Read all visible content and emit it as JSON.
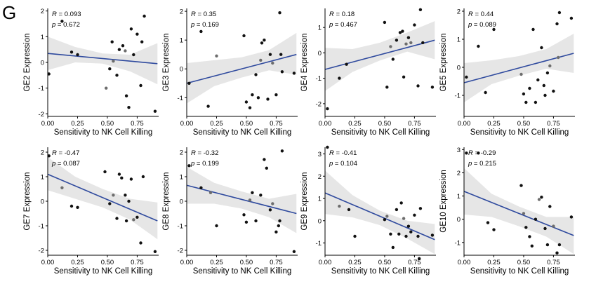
{
  "figure": {
    "panel_label": "G"
  },
  "chart_data": [
    {
      "type": "scatter",
      "xlabel": "Sensitivity to NK Cell Killing",
      "ylabel": "GE2 Expression",
      "xlim": [
        0,
        0.93
      ],
      "ylim": [
        -2.1,
        2.1
      ],
      "xticks": [
        "0.00",
        "0.25",
        "0.50",
        "0.75"
      ],
      "xtick_values": [
        0,
        0.25,
        0.5,
        0.75
      ],
      "yticks": [
        "-2",
        "-1",
        "0",
        "1",
        "2"
      ],
      "ytick_values": [
        -2,
        -1,
        0,
        1,
        2
      ],
      "annotations": {
        "r": "R = 0.093",
        "p": "p = 0.672"
      },
      "fit": {
        "x": [
          0.0,
          0.92
        ],
        "y": [
          0.35,
          -0.05
        ]
      },
      "ci_band": {
        "x": [
          0.0,
          0.23,
          0.46,
          0.69,
          0.92
        ],
        "lower": [
          -0.3,
          0.0,
          -0.05,
          -0.35,
          -0.85
        ],
        "upper": [
          1.0,
          0.6,
          0.35,
          0.3,
          0.75
        ]
      },
      "points": {
        "x": [
          0.01,
          0.12,
          0.2,
          0.25,
          0.49,
          0.52,
          0.54,
          0.55,
          0.58,
          0.6,
          0.63,
          0.65,
          0.66,
          0.68,
          0.7,
          0.72,
          0.75,
          0.78,
          0.79,
          0.81,
          0.9
        ],
        "y": [
          -0.45,
          1.6,
          0.4,
          0.3,
          -1.0,
          -0.25,
          0.8,
          0.05,
          -0.5,
          0.5,
          0.65,
          0.45,
          -1.3,
          -1.75,
          1.3,
          0.3,
          1.1,
          -0.9,
          0.8,
          1.8,
          -1.9
        ]
      },
      "gray_points": [
        4,
        7,
        11
      ]
    },
    {
      "type": "scatter",
      "xlabel": "Sensitivity to NK Cell Killing",
      "ylabel": "GE3 Expression",
      "xlim": [
        0,
        0.93
      ],
      "ylim": [
        -1.65,
        2.1
      ],
      "xticks": [
        "0.00",
        "0.25",
        "0.50",
        "0.75"
      ],
      "xtick_values": [
        0,
        0.25,
        0.5,
        0.75
      ],
      "yticks": [
        "-1",
        "0",
        "1",
        "2"
      ],
      "ytick_values": [
        -1,
        0,
        1,
        2
      ],
      "annotations": {
        "r": "R = 0.35",
        "p": "p = 0.169"
      },
      "fit": {
        "x": [
          0.0,
          0.92
        ],
        "y": [
          -0.5,
          0.5
        ]
      },
      "ci_band": {
        "x": [
          0.0,
          0.23,
          0.46,
          0.69,
          0.92
        ],
        "lower": [
          -1.2,
          -0.6,
          -0.3,
          -0.05,
          -0.2
        ],
        "upper": [
          0.2,
          0.3,
          0.4,
          0.65,
          1.25
        ]
      },
      "points": {
        "x": [
          0.02,
          0.12,
          0.18,
          0.25,
          0.48,
          0.5,
          0.53,
          0.55,
          0.58,
          0.6,
          0.62,
          0.63,
          0.65,
          0.68,
          0.7,
          0.72,
          0.75,
          0.78,
          0.79,
          0.8,
          0.9
        ],
        "y": [
          -0.5,
          1.3,
          -1.3,
          0.45,
          1.15,
          -1.15,
          -1.35,
          -0.9,
          -0.2,
          -1.0,
          0.3,
          0.9,
          1.0,
          -1.05,
          0.5,
          0.2,
          -0.9,
          1.95,
          0.5,
          -0.1,
          -0.15
        ]
      },
      "gray_points": [
        3,
        10,
        15
      ]
    },
    {
      "type": "scatter",
      "xlabel": "Sensitivity to NK Cell Killing",
      "ylabel": "GE4 Expression",
      "xlim": [
        0,
        0.93
      ],
      "ylim": [
        -2.5,
        1.75
      ],
      "xticks": [
        "0.00",
        "0.25",
        "0.50",
        "0.75"
      ],
      "xtick_values": [
        0,
        0.25,
        0.5,
        0.75
      ],
      "yticks": [
        "-2",
        "-1",
        "0",
        "1"
      ],
      "ytick_values": [
        -2,
        -1,
        0,
        1
      ],
      "annotations": {
        "r": "R = 0.18",
        "p": "p = 0.467"
      },
      "fit": {
        "x": [
          0.0,
          0.92
        ],
        "y": [
          -0.65,
          0.5
        ]
      },
      "ci_band": {
        "x": [
          0.0,
          0.23,
          0.46,
          0.69,
          0.92
        ],
        "lower": [
          -1.5,
          -0.75,
          -0.3,
          0.05,
          -0.25
        ],
        "upper": [
          0.2,
          0.15,
          0.4,
          0.8,
          1.25
        ]
      },
      "points": {
        "x": [
          0.02,
          0.12,
          0.18,
          0.5,
          0.52,
          0.55,
          0.57,
          0.6,
          0.63,
          0.65,
          0.66,
          0.68,
          0.7,
          0.72,
          0.75,
          0.78,
          0.8,
          0.82,
          0.9
        ],
        "y": [
          -2.2,
          -1.0,
          -0.45,
          1.2,
          -1.35,
          0.25,
          -0.25,
          0.5,
          0.8,
          0.85,
          -0.95,
          0.35,
          0.6,
          0.4,
          1.1,
          -1.3,
          1.7,
          0.4,
          -1.35
        ]
      },
      "gray_points": [
        5,
        11,
        13
      ]
    },
    {
      "type": "scatter",
      "xlabel": "Sensitivity to NK Cell Killing",
      "ylabel": "GE5 Expression",
      "xlim": [
        0,
        0.93
      ],
      "ylim": [
        -1.75,
        2.1
      ],
      "xticks": [
        "0.00",
        "0.25",
        "0.50",
        "0.75"
      ],
      "xtick_values": [
        0,
        0.25,
        0.5,
        0.75
      ],
      "yticks": [
        "-1",
        "0",
        "1",
        "2"
      ],
      "ytick_values": [
        -1,
        0,
        1,
        2
      ],
      "annotations": {
        "r": "R = 0.44",
        "p": "p = 0.089"
      },
      "fit": {
        "x": [
          0.0,
          0.92
        ],
        "y": [
          -0.55,
          0.5
        ]
      },
      "ci_band": {
        "x": [
          0.0,
          0.23,
          0.46,
          0.69,
          0.92
        ],
        "lower": [
          -1.25,
          -0.6,
          -0.3,
          -0.05,
          -0.2
        ],
        "upper": [
          0.15,
          0.25,
          0.4,
          0.65,
          1.2
        ]
      },
      "points": {
        "x": [
          0.02,
          0.12,
          0.18,
          0.25,
          0.48,
          0.5,
          0.52,
          0.55,
          0.58,
          0.6,
          0.62,
          0.65,
          0.67,
          0.68,
          0.7,
          0.72,
          0.75,
          0.78,
          0.79,
          0.8,
          0.9
        ],
        "y": [
          -0.35,
          0.75,
          -0.9,
          1.35,
          -0.25,
          -0.95,
          -1.25,
          -0.75,
          1.35,
          -1.25,
          -0.45,
          0.7,
          -0.65,
          -1.0,
          -0.2,
          0.05,
          -0.85,
          1.55,
          0.35,
          1.95,
          1.75
        ]
      },
      "gray_points": [
        4,
        15,
        18
      ]
    },
    {
      "type": "scatter",
      "xlabel": "Sensitivity to NK Cell Killing",
      "ylabel": "GE7 Expression",
      "xlim": [
        0,
        0.93
      ],
      "ylim": [
        -2.2,
        2.2
      ],
      "xticks": [
        "0.00",
        "0.25",
        "0.50",
        "0.75"
      ],
      "xtick_values": [
        0,
        0.25,
        0.5,
        0.75
      ],
      "yticks": [
        "-2",
        "-1",
        "0",
        "1",
        "2"
      ],
      "ytick_values": [
        -2,
        -1,
        0,
        1,
        2
      ],
      "annotations": {
        "r": "R = -0.47",
        "p": "p = 0.087"
      },
      "fit": {
        "x": [
          0.0,
          0.92
        ],
        "y": [
          1.1,
          -0.8
        ]
      },
      "ci_band": {
        "x": [
          0.0,
          0.23,
          0.46,
          0.69,
          0.92
        ],
        "lower": [
          0.45,
          0.1,
          -0.25,
          -0.75,
          -1.55
        ],
        "upper": [
          1.8,
          1.0,
          0.5,
          0.1,
          -0.05
        ]
      },
      "points": {
        "x": [
          0.01,
          0.12,
          0.2,
          0.25,
          0.48,
          0.52,
          0.55,
          0.58,
          0.6,
          0.62,
          0.65,
          0.66,
          0.68,
          0.7,
          0.72,
          0.75,
          0.78,
          0.8,
          0.9
        ],
        "y": [
          1.85,
          0.55,
          -0.2,
          -0.25,
          1.2,
          -0.1,
          0.25,
          -0.7,
          1.1,
          0.95,
          0.25,
          -0.8,
          0.0,
          0.9,
          -0.75,
          -0.65,
          -1.7,
          1.0,
          -2.05
        ]
      },
      "gray_points": [
        1,
        6,
        14
      ]
    },
    {
      "type": "scatter",
      "xlabel": "Sensitivity to NK Cell Killing",
      "ylabel": "GE8 Expression",
      "xlim": [
        0,
        0.93
      ],
      "ylim": [
        -2.2,
        2.2
      ],
      "xticks": [
        "0.00",
        "0.25",
        "0.50",
        "0.75"
      ],
      "xtick_values": [
        0,
        0.25,
        0.5,
        0.75
      ],
      "yticks": [
        "-2",
        "-1",
        "0",
        "1",
        "2"
      ],
      "ytick_values": [
        -2,
        -1,
        0,
        1,
        2
      ],
      "annotations": {
        "r": "R = -0.32",
        "p": "p = 0.199"
      },
      "fit": {
        "x": [
          0.0,
          0.92
        ],
        "y": [
          0.65,
          -0.5
        ]
      },
      "ci_band": {
        "x": [
          0.0,
          0.23,
          0.46,
          0.69,
          0.92
        ],
        "lower": [
          -0.1,
          -0.1,
          -0.3,
          -0.65,
          -1.3
        ],
        "upper": [
          1.4,
          0.75,
          0.4,
          0.1,
          0.3
        ]
      },
      "points": {
        "x": [
          0.02,
          0.12,
          0.2,
          0.25,
          0.48,
          0.5,
          0.53,
          0.55,
          0.58,
          0.62,
          0.65,
          0.67,
          0.7,
          0.72,
          0.75,
          0.77,
          0.78,
          0.8,
          0.9
        ],
        "y": [
          1.45,
          0.55,
          0.35,
          -1.0,
          -0.55,
          -0.85,
          0.05,
          0.35,
          -0.8,
          0.25,
          1.7,
          1.35,
          -0.35,
          -0.1,
          -1.25,
          -1.0,
          -0.8,
          2.05,
          -2.05
        ]
      },
      "gray_points": [
        2,
        6,
        13
      ]
    },
    {
      "type": "scatter",
      "xlabel": "Sensitivity to NK Cell Killing",
      "ylabel": "GE9 Expression",
      "xlim": [
        0,
        0.93
      ],
      "ylim": [
        -1.55,
        3.3
      ],
      "xticks": [
        "0.00",
        "0.25",
        "0.50",
        "0.75"
      ],
      "xtick_values": [
        0,
        0.25,
        0.5,
        0.75
      ],
      "yticks": [
        "-1",
        "0",
        "1",
        "2",
        "3"
      ],
      "ytick_values": [
        -1,
        0,
        1,
        2,
        3
      ],
      "annotations": {
        "r": "R = -0.41",
        "p": "p = 0.104"
      },
      "fit": {
        "x": [
          0.0,
          0.92
        ],
        "y": [
          1.25,
          -0.85
        ]
      },
      "ci_band": {
        "x": [
          0.0,
          0.23,
          0.46,
          0.69,
          0.92
        ],
        "lower": [
          0.3,
          0.15,
          -0.2,
          -0.8,
          -1.5
        ],
        "upper": [
          2.25,
          1.15,
          0.45,
          0.0,
          -0.15
        ]
      },
      "points": {
        "x": [
          0.02,
          0.12,
          0.2,
          0.25,
          0.5,
          0.52,
          0.55,
          0.57,
          0.6,
          0.62,
          0.64,
          0.66,
          0.68,
          0.7,
          0.72,
          0.75,
          0.78,
          0.79,
          0.8,
          0.9
        ],
        "y": [
          3.3,
          0.65,
          0.5,
          -0.7,
          0.05,
          0.2,
          -0.6,
          -1.2,
          0.5,
          -0.6,
          0.8,
          0.1,
          -0.7,
          -0.25,
          -0.5,
          0.25,
          -0.7,
          -1.7,
          0.55,
          -0.65
        ]
      },
      "gray_points": [
        1,
        5,
        11
      ]
    },
    {
      "type": "scatter",
      "xlabel": "Sensitivity to NK Cell Killing",
      "ylabel": "GE10 Expression",
      "xlim": [
        0,
        0.93
      ],
      "ylim": [
        -1.55,
        3.1
      ],
      "xticks": [
        "0.00",
        "0.25",
        "0.50",
        "0.75"
      ],
      "xtick_values": [
        0,
        0.25,
        0.5,
        0.75
      ],
      "yticks": [
        "-1",
        "0",
        "1",
        "2",
        "3"
      ],
      "ytick_values": [
        -1,
        0,
        1,
        2,
        3
      ],
      "annotations": {
        "r": "R = -0.29",
        "p": "p = 0.215"
      },
      "fit": {
        "x": [
          0.0,
          0.92
        ],
        "y": [
          1.2,
          -0.7
        ]
      },
      "ci_band": {
        "x": [
          0.0,
          0.23,
          0.46,
          0.69,
          0.92
        ],
        "lower": [
          0.2,
          0.1,
          -0.3,
          -0.75,
          -1.5
        ],
        "upper": [
          2.2,
          1.1,
          0.55,
          0.1,
          0.1
        ]
      },
      "points": {
        "x": [
          0.02,
          0.12,
          0.2,
          0.25,
          0.48,
          0.5,
          0.52,
          0.55,
          0.57,
          0.6,
          0.63,
          0.65,
          0.68,
          0.7,
          0.72,
          0.75,
          0.78,
          0.8,
          0.9
        ],
        "y": [
          2.85,
          2.85,
          -0.15,
          -0.45,
          1.45,
          0.25,
          -0.35,
          -0.75,
          -1.15,
          0.0,
          0.85,
          0.95,
          -0.4,
          -1.1,
          0.55,
          -0.3,
          -1.45,
          -1.1,
          0.1
        ]
      },
      "gray_points": [
        5,
        10,
        15
      ]
    }
  ]
}
